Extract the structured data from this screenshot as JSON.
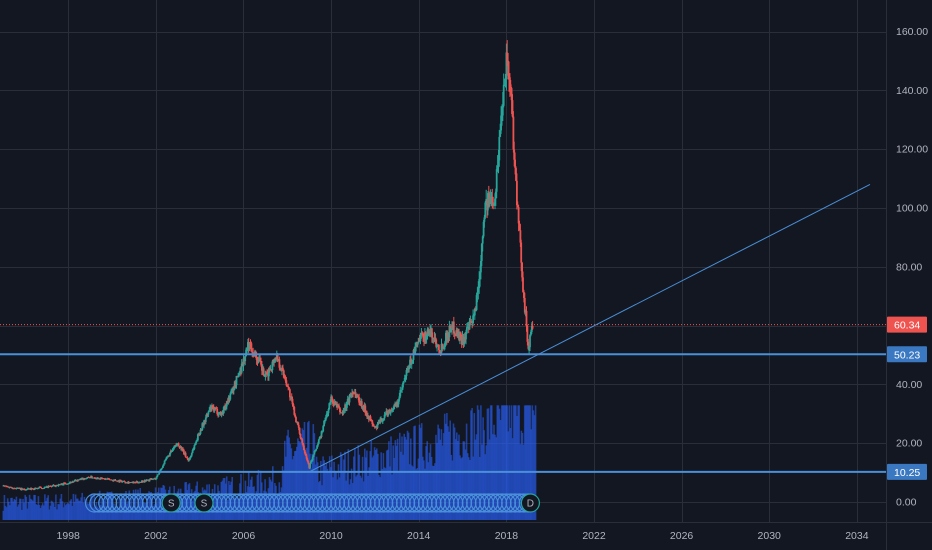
{
  "colors": {
    "background": "#131722",
    "grid": "#2a2e39",
    "up": "#26a69a",
    "down": "#ef5350",
    "volume": "#2962ff",
    "level_line": "#4a90d9",
    "trend_line": "#4a90d9",
    "price_line": "#ef5350",
    "price_badge": "#ef5350",
    "level_badge": "#3a78c2"
  },
  "chart_data": {
    "type": "candlestick",
    "x_axis": {
      "ticks": [
        "1998",
        "2002",
        "2006",
        "2010",
        "2014",
        "2018",
        "2022",
        "2026",
        "2030",
        "2034"
      ],
      "range": [
        1995.0,
        2034.6
      ]
    },
    "y_axis": {
      "ticks": [
        "160.00",
        "140.00",
        "120.00",
        "100.00",
        "80.00",
        "60.00",
        "40.00",
        "20.00",
        "0.00"
      ],
      "range": [
        -10,
        166
      ]
    },
    "grid": true,
    "price_series": {
      "name": "",
      "points": [
        [
          1995.0,
          5.5
        ],
        [
          1996.0,
          4.2
        ],
        [
          1997.0,
          5.0
        ],
        [
          1998.0,
          6.5
        ],
        [
          1999.0,
          8.5
        ],
        [
          2000.0,
          7.5
        ],
        [
          2001.0,
          6.5
        ],
        [
          2002.0,
          8.0
        ],
        [
          2002.5,
          15.0
        ],
        [
          2003.0,
          20.0
        ],
        [
          2003.5,
          14.0
        ],
        [
          2004.0,
          24.0
        ],
        [
          2004.5,
          32.0
        ],
        [
          2005.0,
          30.0
        ],
        [
          2005.5,
          38.0
        ],
        [
          2006.0,
          48.0
        ],
        [
          2006.25,
          54.0
        ],
        [
          2006.75,
          47.0
        ],
        [
          2007.0,
          42.0
        ],
        [
          2007.5,
          50.0
        ],
        [
          2008.0,
          40.0
        ],
        [
          2008.5,
          25.0
        ],
        [
          2009.0,
          12.0
        ],
        [
          2009.5,
          22.0
        ],
        [
          2010.0,
          35.0
        ],
        [
          2010.5,
          30.0
        ],
        [
          2011.0,
          38.0
        ],
        [
          2011.5,
          32.0
        ],
        [
          2012.0,
          25.0
        ],
        [
          2012.5,
          30.0
        ],
        [
          2013.0,
          33.0
        ],
        [
          2013.5,
          45.0
        ],
        [
          2014.0,
          55.0
        ],
        [
          2014.5,
          58.0
        ],
        [
          2015.0,
          52.0
        ],
        [
          2015.5,
          60.0
        ],
        [
          2016.0,
          55.0
        ],
        [
          2016.5,
          62.0
        ],
        [
          2016.75,
          75.0
        ],
        [
          2017.0,
          100.0
        ],
        [
          2017.5,
          105.0
        ],
        [
          2017.75,
          130.0
        ],
        [
          2018.0,
          152.0
        ],
        [
          2018.2,
          140.0
        ],
        [
          2018.5,
          100.0
        ],
        [
          2018.8,
          70.0
        ],
        [
          2019.0,
          52.0
        ],
        [
          2019.2,
          60.34
        ]
      ]
    },
    "volume": {
      "start_year": 1995.0,
      "end_year": 2019.3,
      "peak_year": 2018.5,
      "max_height_in_price_units": 39
    },
    "horizontal_levels": [
      {
        "value": 50.23,
        "label": "50.23"
      },
      {
        "value": 10.25,
        "label": "10.25"
      }
    ],
    "current_price": {
      "value": 60.34,
      "label": "60.34"
    },
    "trend_line": {
      "from": [
        2009.0,
        10.25
      ],
      "to": [
        2034.6,
        108.0
      ]
    },
    "markers": [
      {
        "year": 2002.7,
        "label": "S"
      },
      {
        "year": 2004.2,
        "label": "S"
      },
      {
        "year": 2019.1,
        "label": "D"
      }
    ],
    "marker_row": {
      "start_year": 1999.2,
      "end_year": 2019.2
    }
  }
}
